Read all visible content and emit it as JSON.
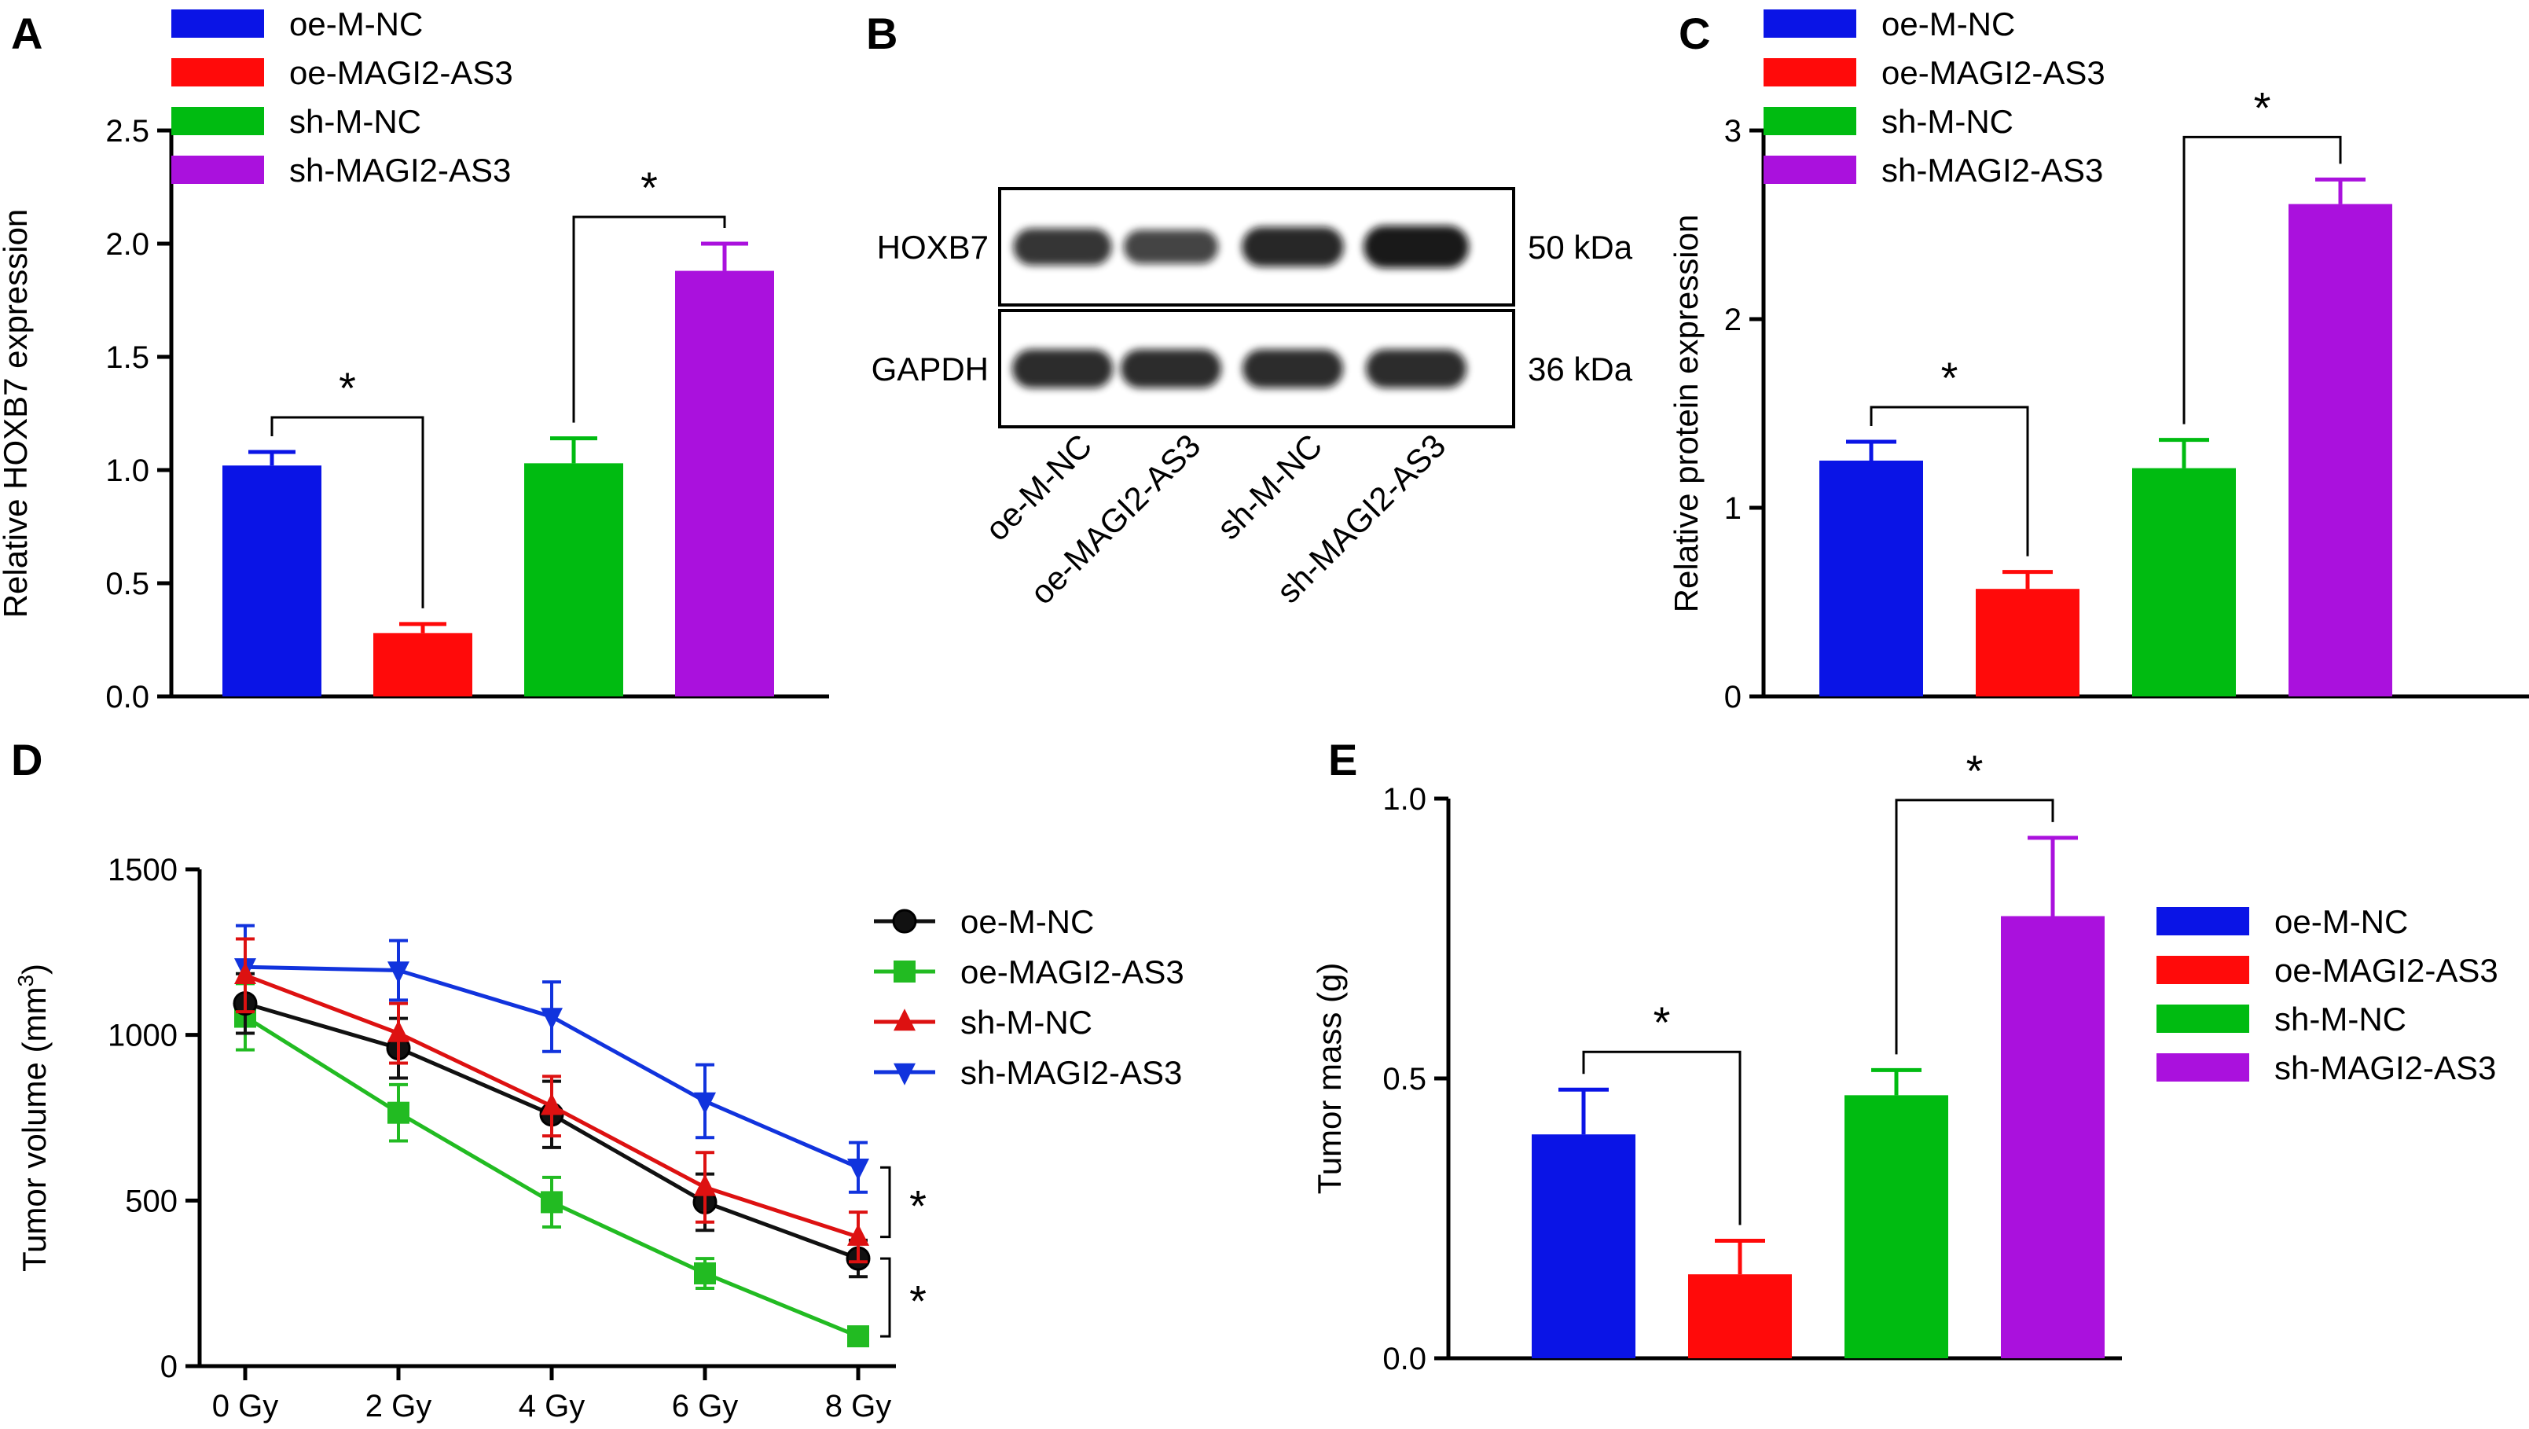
{
  "colors": {
    "oe-M-NC": "#0a14e6",
    "oe-MAGI2-AS3": "#ff0a0a",
    "sh-M-NC": "#00bb11",
    "sh-MAGI2-AS3": "#aa11dd",
    "line_oe-M-NC": "#111111",
    "line_oe-MAGI2-AS3": "#22bb22",
    "line_sh-M-NC": "#dd1111",
    "line_sh-MAGI2-AS3": "#1133dd"
  },
  "panels": {
    "A": "A",
    "B": "B",
    "C": "C",
    "D": "D",
    "E": "E"
  },
  "blot": {
    "proteins": [
      "HOXB7",
      "GAPDH"
    ],
    "sizes": [
      "50 kDa",
      "36 kDa"
    ],
    "lanes": [
      "oe-M-NC",
      "oe-MAGI2-AS3",
      "sh-M-NC",
      "sh-MAGI2-AS3"
    ],
    "band_intensity": [
      [
        0.7,
        0.55,
        0.85,
        1.0
      ],
      [
        0.8,
        0.8,
        0.8,
        0.8
      ]
    ]
  },
  "chart_data": [
    {
      "id": "A",
      "type": "bar",
      "categories": [
        "oe-M-NC",
        "oe-MAGI2-AS3",
        "sh-M-NC",
        "sh-MAGI2-AS3"
      ],
      "values": [
        1.02,
        0.28,
        1.03,
        1.88
      ],
      "errors": [
        0.06,
        0.04,
        0.11,
        0.12
      ],
      "ylabel": "Relative HOXB7 expression",
      "ylim": [
        0,
        2.5
      ],
      "yticks": [
        "0.0",
        "0.5",
        "1.0",
        "1.5",
        "2.0",
        "2.5"
      ],
      "legend": [
        "oe-M-NC",
        "oe-MAGI2-AS3",
        "sh-M-NC",
        "sh-MAGI2-AS3"
      ],
      "significance": [
        {
          "pair": [
            0,
            1
          ],
          "label": "*"
        },
        {
          "pair": [
            2,
            3
          ],
          "label": "*"
        }
      ]
    },
    {
      "id": "C",
      "type": "bar",
      "categories": [
        "oe-M-NC",
        "oe-MAGI2-AS3",
        "sh-M-NC",
        "sh-MAGI2-AS3"
      ],
      "values": [
        1.25,
        0.57,
        1.21,
        2.61
      ],
      "errors": [
        0.1,
        0.09,
        0.15,
        0.13
      ],
      "ylabel": "Relative protein expression",
      "ylim": [
        0,
        3
      ],
      "yticks": [
        "0",
        "1",
        "2",
        "3"
      ],
      "legend": [
        "oe-M-NC",
        "oe-MAGI2-AS3",
        "sh-M-NC",
        "sh-MAGI2-AS3"
      ],
      "significance": [
        {
          "pair": [
            0,
            1
          ],
          "label": "*"
        },
        {
          "pair": [
            2,
            3
          ],
          "label": "*"
        }
      ]
    },
    {
      "id": "D",
      "type": "line",
      "x": [
        "0 Gy",
        "2 Gy",
        "4 Gy",
        "6 Gy",
        "8 Gy"
      ],
      "ylabel_pre": "Tumor volume (mm",
      "ylabel_sup": "3",
      "ylabel_post": ")",
      "ylim": [
        0,
        1500
      ],
      "yticks": [
        "0",
        "500",
        "1000",
        "1500"
      ],
      "series": [
        {
          "name": "oe-M-NC",
          "values": [
            1095,
            960,
            760,
            495,
            325
          ],
          "errors": [
            90,
            90,
            100,
            85,
            55
          ],
          "marker": "circle"
        },
        {
          "name": "oe-MAGI2-AS3",
          "values": [
            1055,
            765,
            495,
            280,
            90
          ],
          "errors": [
            100,
            85,
            75,
            45,
            25
          ],
          "marker": "square"
        },
        {
          "name": "sh-M-NC",
          "values": [
            1180,
            1005,
            785,
            540,
            390
          ],
          "errors": [
            110,
            90,
            90,
            105,
            75
          ],
          "marker": "triangle-up"
        },
        {
          "name": "sh-MAGI2-AS3",
          "values": [
            1205,
            1195,
            1055,
            800,
            600
          ],
          "errors": [
            125,
            90,
            105,
            110,
            75
          ],
          "marker": "triangle-down"
        }
      ],
      "significance": [
        {
          "between": [
            "sh-MAGI2-AS3",
            "sh-M-NC"
          ],
          "label": "*"
        },
        {
          "between": [
            "oe-M-NC",
            "oe-MAGI2-AS3"
          ],
          "label": "*"
        }
      ]
    },
    {
      "id": "E",
      "type": "bar",
      "categories": [
        "oe-M-NC",
        "oe-MAGI2-AS3",
        "sh-M-NC",
        "sh-MAGI2-AS3"
      ],
      "values": [
        0.4,
        0.15,
        0.47,
        0.79
      ],
      "errors": [
        0.08,
        0.06,
        0.045,
        0.14
      ],
      "ylabel": "Tumor mass (g)",
      "ylim": [
        0,
        1.0
      ],
      "yticks": [
        "0.0",
        "0.5",
        "1.0"
      ],
      "legend": [
        "oe-M-NC",
        "oe-MAGI2-AS3",
        "sh-M-NC",
        "sh-MAGI2-AS3"
      ],
      "significance": [
        {
          "pair": [
            0,
            1
          ],
          "label": "*"
        },
        {
          "pair": [
            2,
            3
          ],
          "label": "*"
        }
      ]
    }
  ]
}
